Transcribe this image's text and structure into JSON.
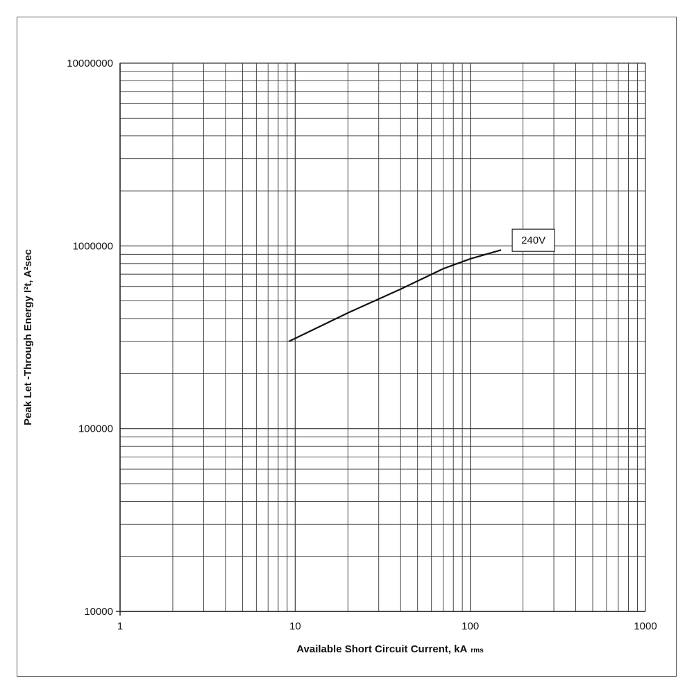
{
  "chart_data": {
    "type": "line",
    "title": "",
    "xlabel": "Available Short Circuit Current, kA",
    "xlabel_subscript": "rms",
    "ylabel": "Peak Let -Through Energy I²t, A²sec",
    "x_scale": "log",
    "y_scale": "log",
    "xlim": [
      1,
      1000
    ],
    "ylim": [
      10000,
      10000000
    ],
    "grid": true,
    "x_ticks": [
      "1",
      "10",
      "100",
      "1000"
    ],
    "y_ticks": [
      "10000",
      "100000",
      "1000000",
      "10000000"
    ],
    "series": [
      {
        "name": "240V",
        "x": [
          9.2,
          20,
          40,
          70,
          100,
          150
        ],
        "y": [
          300000,
          430000,
          580000,
          750000,
          850000,
          950000
        ]
      }
    ],
    "colors": {
      "line": "#111111",
      "grid": "#333333"
    }
  }
}
